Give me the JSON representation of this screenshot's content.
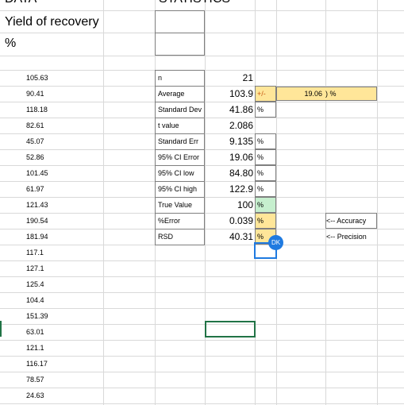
{
  "headers": {
    "data": "DATA",
    "statistics": "STATISTICS"
  },
  "data_column": {
    "title": "Yield of recovery",
    "unit": "%",
    "values": [
      "105.63",
      "90.41",
      "118.18",
      "82.61",
      "45.07",
      "52.86",
      "101.45",
      "61.97",
      "121.43",
      "190.54",
      "181.94",
      "117.1",
      "127.1",
      "125.4",
      "104.4",
      "151.39",
      "63.01",
      "121.1",
      "116.17",
      "78.57",
      "24.63"
    ]
  },
  "stats": [
    {
      "label": "n",
      "value": "21",
      "unit": ""
    },
    {
      "label": "Average",
      "value": "103.9",
      "unit": "+/-"
    },
    {
      "label": "Standard Dev",
      "value": "41.86",
      "unit": "%"
    },
    {
      "label": "t value",
      "value": "2.086",
      "unit": ""
    },
    {
      "label": "Standard Err",
      "value": "9.135",
      "unit": "%"
    },
    {
      "label": "95% CI Error",
      "value": "19.06",
      "unit": "%"
    },
    {
      "label": "95% CI low",
      "value": "84.80",
      "unit": "%"
    },
    {
      "label": "95% CI high",
      "value": "122.9",
      "unit": "%"
    },
    {
      "label": "True Value",
      "value": "100",
      "unit": "%"
    },
    {
      "label": "%Error",
      "value": "0.039",
      "unit": "%"
    },
    {
      "label": "RSD",
      "value": "40.31",
      "unit": "%"
    }
  ],
  "ci_box": {
    "value": "19.06",
    "unit": ") %"
  },
  "notes": {
    "accuracy": "<-- Accuracy",
    "precision": "<-- Precision"
  },
  "collaborator_badge": "DK",
  "colors": {
    "highlight_yellow": "#ffe699",
    "highlight_green": "#c6efce",
    "selection_blue": "#1f7ae0",
    "selection_green": "#217346"
  }
}
